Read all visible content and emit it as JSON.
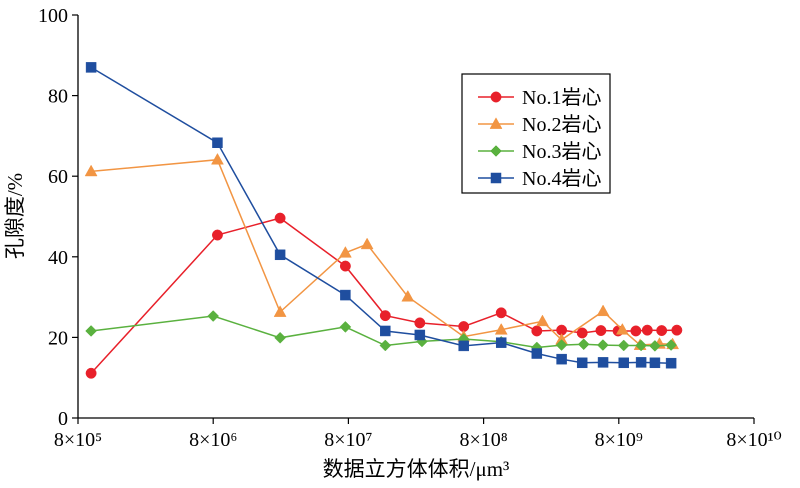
{
  "chart_data": {
    "type": "line",
    "xscale": "log",
    "xlabel": "数据立方体体积/μm³",
    "ylabel": "孔隙度/%",
    "xlim": [
      800000,
      80000000000
    ],
    "ylim": [
      0,
      100
    ],
    "grid": false,
    "legend_position": "top-right",
    "x_ticks": [
      "8×10⁵",
      "8×10⁶",
      "8×10⁷",
      "8×10⁸",
      "8×10⁹",
      "8×10¹⁰"
    ],
    "x_tick_values": [
      800000,
      8000000,
      80000000,
      800000000,
      8000000000,
      80000000000
    ],
    "y_ticks": [
      "0",
      "20",
      "40",
      "60",
      "80",
      "100"
    ],
    "y_tick_values": [
      0,
      20,
      40,
      60,
      80,
      100
    ],
    "series": [
      {
        "name": "No.1岩心",
        "color": "#e8202a",
        "marker": "circle",
        "x": [
          1000000,
          8600000,
          25000000,
          76000000,
          150000000,
          270000000,
          570000000,
          1080000000,
          1980000000,
          3020000000,
          4290000000,
          5900000000,
          7900000000,
          10700000000,
          13000000000,
          16600000000,
          21500000000
        ],
        "y": [
          11.1,
          45.4,
          49.6,
          37.7,
          25.4,
          23.6,
          22.7,
          26.1,
          21.6,
          21.8,
          21.1,
          21.7,
          21.6,
          21.6,
          21.8,
          21.7,
          21.8
        ]
      },
      {
        "name": "No.2岩心",
        "color": "#f29543",
        "marker": "triangle",
        "x": [
          1000000,
          8600000,
          25000000,
          76000000,
          110000000,
          220000000,
          570000000,
          1080000000,
          2180000000,
          3020000000,
          6120000000,
          8500000000,
          11500000000,
          16000000000,
          20000000000
        ],
        "y": [
          61.2,
          64.1,
          26.3,
          41.0,
          43.1,
          30.1,
          20.2,
          21.9,
          24.0,
          19.4,
          26.5,
          21.9,
          18.1,
          18.4,
          18.3
        ]
      },
      {
        "name": "No.3岩心",
        "color": "#5ab13f",
        "marker": "diamond",
        "x": [
          1000000,
          8000000,
          25000000,
          76000000,
          150000000,
          280000000,
          570000000,
          1080000000,
          1980000000,
          3020000000,
          4400000000,
          6100000000,
          8700000000,
          11700000000,
          14800000000,
          19500000000
        ],
        "y": [
          21.6,
          25.3,
          19.9,
          22.6,
          18.0,
          19.0,
          19.6,
          18.9,
          17.5,
          18.1,
          18.3,
          18.1,
          18.0,
          18.0,
          17.9,
          18.1
        ]
      },
      {
        "name": "No.4岩心",
        "color": "#1f4e9f",
        "marker": "square",
        "x": [
          1000000,
          8600000,
          25000000,
          76000000,
          150000000,
          270000000,
          570000000,
          1080000000,
          1980000000,
          3020000000,
          4290000000,
          6120000000,
          8700000000,
          11700000000,
          14800000000,
          19500000000
        ],
        "y": [
          87.0,
          68.3,
          40.5,
          30.5,
          21.6,
          20.6,
          17.9,
          18.7,
          16.0,
          14.6,
          13.7,
          13.8,
          13.7,
          13.8,
          13.7,
          13.6
        ]
      }
    ]
  }
}
